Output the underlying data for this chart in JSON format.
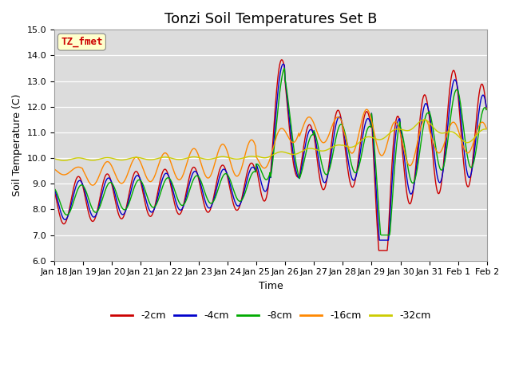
{
  "title": "Tonzi Soil Temperatures Set B",
  "xlabel": "Time",
  "ylabel": "Soil Temperature (C)",
  "ylim": [
    6.0,
    15.0
  ],
  "yticks": [
    6.0,
    7.0,
    8.0,
    9.0,
    10.0,
    11.0,
    12.0,
    13.0,
    14.0,
    15.0
  ],
  "series_labels": [
    "-2cm",
    "-4cm",
    "-8cm",
    "-16cm",
    "-32cm"
  ],
  "series_colors": [
    "#cc0000",
    "#0000cc",
    "#00aa00",
    "#ff8800",
    "#cccc00"
  ],
  "line_widths": [
    1.0,
    1.0,
    1.0,
    1.0,
    1.0
  ],
  "xtick_labels": [
    "Jan 18",
    "Jan 19",
    "Jan 20",
    "Jan 21",
    "Jan 22",
    "Jan 23",
    "Jan 24",
    "Jan 25",
    "Jan 26",
    "Jan 27",
    "Jan 28",
    "Jan 29",
    "Jan 30",
    "Jan 31",
    "Feb 1",
    "Feb 2"
  ],
  "annotation_text": "TZ_fmet",
  "annotation_color": "#cc0000",
  "annotation_bg": "#ffffcc",
  "bg_color": "#dcdcdc",
  "grid_color": "#ffffff",
  "title_fontsize": 13,
  "label_fontsize": 9,
  "tick_fontsize": 8
}
